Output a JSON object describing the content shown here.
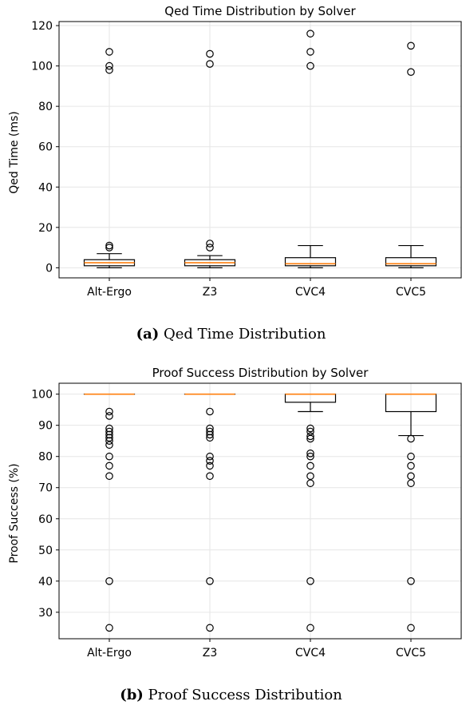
{
  "chart_data": [
    {
      "type": "box",
      "title": "Qed Time Distribution by Solver",
      "ylabel": "Qed Time (ms)",
      "xlabel": "",
      "ylim": [
        -5,
        122
      ],
      "yticks": [
        0,
        20,
        40,
        60,
        80,
        100,
        120
      ],
      "grid": true,
      "categories": [
        "Alt-Ergo",
        "Z3",
        "CVC4",
        "CVC5"
      ],
      "boxes": [
        {
          "whisker_low": 0,
          "q1": 1,
          "median": 2.5,
          "q3": 4,
          "whisker_high": 7,
          "outliers": [
            10,
            11,
            98,
            100,
            107
          ]
        },
        {
          "whisker_low": 0,
          "q1": 1,
          "median": 2.5,
          "q3": 4,
          "whisker_high": 6,
          "outliers": [
            10,
            12,
            101,
            106
          ]
        },
        {
          "whisker_low": 0,
          "q1": 1,
          "median": 2,
          "q3": 5,
          "whisker_high": 11,
          "outliers": [
            100,
            107,
            116
          ]
        },
        {
          "whisker_low": 0,
          "q1": 1,
          "median": 2,
          "q3": 5,
          "whisker_high": 11,
          "outliers": [
            97,
            110
          ]
        }
      ]
    },
    {
      "type": "box",
      "title": "Proof Success Distribution by Solver",
      "ylabel": "Proof Success (%)",
      "xlabel": "",
      "ylim": [
        21.5,
        103.5
      ],
      "yticks": [
        30,
        40,
        50,
        60,
        70,
        80,
        90,
        100
      ],
      "grid": true,
      "categories": [
        "Alt-Ergo",
        "Z3",
        "CVC4",
        "CVC5"
      ],
      "boxes": [
        {
          "whisker_low": 100,
          "q1": 100,
          "median": 100,
          "q3": 100,
          "whisker_high": 100,
          "outliers": [
            94.4,
            93,
            89,
            88,
            87,
            86,
            85,
            83.7,
            80,
            77,
            73.7,
            40,
            25
          ]
        },
        {
          "whisker_low": 100,
          "q1": 100,
          "median": 100,
          "q3": 100,
          "whisker_high": 100,
          "outliers": [
            94.4,
            89,
            88,
            87,
            86,
            80,
            78.6,
            77,
            73.7,
            40,
            25
          ]
        },
        {
          "whisker_low": 94.4,
          "q1": 97.4,
          "median": 100,
          "q3": 100,
          "whisker_high": 100,
          "outliers": [
            89,
            88,
            86.5,
            85.7,
            81,
            80,
            77,
            73.7,
            71.4,
            40,
            25
          ]
        },
        {
          "whisker_low": 86.7,
          "q1": 94.4,
          "median": 100,
          "q3": 100,
          "whisker_high": 100,
          "outliers": [
            85.7,
            80,
            77,
            73.7,
            71.4,
            40,
            25
          ]
        }
      ]
    }
  ],
  "captions": [
    {
      "tag": "(a)",
      "text": " Qed Time Distribution"
    },
    {
      "tag": "(b)",
      "text": " Proof Success Distribution"
    }
  ],
  "colors": {
    "box": "#000000",
    "median": "#ff7f0e",
    "grid": "#e6e6e6",
    "axis": "#000000"
  }
}
